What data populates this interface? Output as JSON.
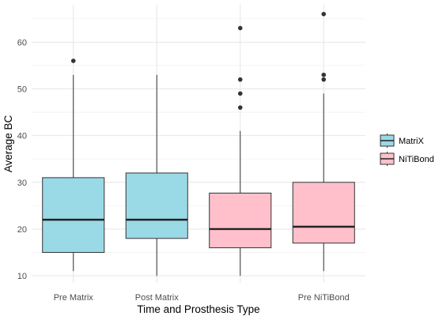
{
  "chart_data": {
    "type": "box",
    "xlabel": "Time and Prosthesis Type",
    "ylabel": "Average BC",
    "ylim": [
      8.5,
      68
    ],
    "yticks": [
      10,
      20,
      30,
      40,
      50,
      60
    ],
    "grid": true,
    "legend_position": "right",
    "legend": [
      {
        "name": "MatriX",
        "color": "#9ad9e6"
      },
      {
        "name": "NiTiBond",
        "color": "#ffc0cb"
      }
    ],
    "categories": [
      {
        "label": "Pre Matrix",
        "group": "MatriX",
        "min": 11,
        "q1": 15,
        "median": 22,
        "q3": 31,
        "max": 53,
        "outliers": [
          56
        ]
      },
      {
        "label": "Post Matrix",
        "group": "MatriX",
        "min": 10,
        "q1": 18,
        "median": 22,
        "q3": 32,
        "max": 53,
        "outliers": []
      },
      {
        "label": "",
        "group": "NiTiBond",
        "min": 10,
        "q1": 16,
        "median": 20,
        "q3": 27.7,
        "max": 41,
        "outliers": [
          46,
          49,
          52,
          63
        ]
      },
      {
        "label": "Pre NiTiBond",
        "group": "NiTiBond",
        "min": 11,
        "q1": 17,
        "median": 20.5,
        "q3": 30,
        "max": 49,
        "outliers": [
          52,
          53,
          66
        ]
      }
    ]
  }
}
